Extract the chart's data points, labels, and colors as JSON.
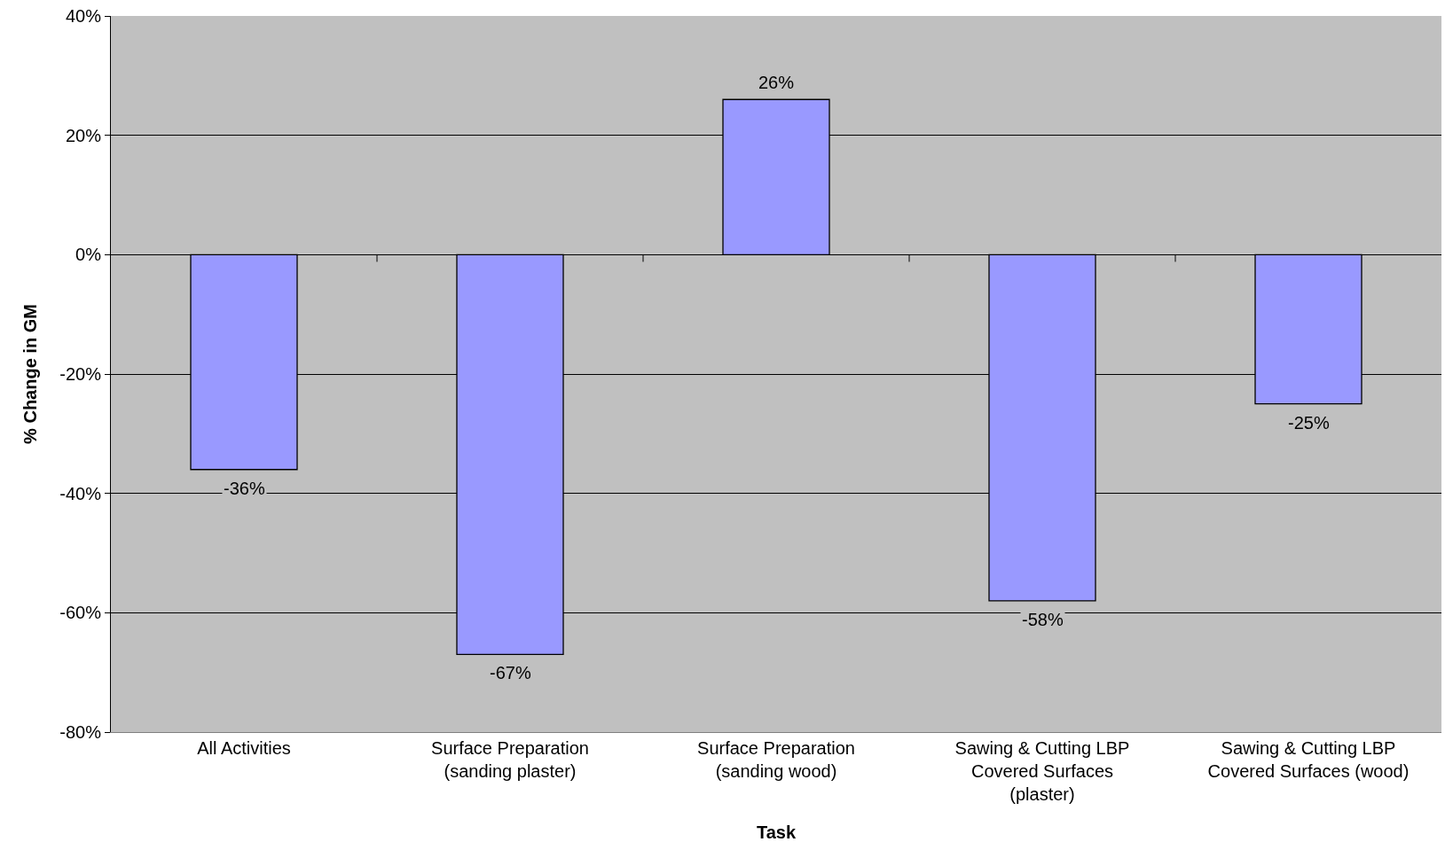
{
  "chart_data": {
    "type": "bar",
    "categories": [
      "All Activities",
      "Surface Preparation (sanding plaster)",
      "Surface Preparation (sanding wood)",
      "Sawing & Cutting LBP Covered Surfaces (plaster)",
      "Sawing & Cutting LBP Covered Surfaces (wood)"
    ],
    "values": [
      -36,
      -67,
      26,
      -58,
      -25
    ],
    "value_labels": [
      "-36%",
      "-67%",
      "26%",
      "-58%",
      "-25%"
    ],
    "color": "#9999ff",
    "xlabel": "Task",
    "ylabel": "% Change in GM",
    "ylim": [
      -80,
      40
    ],
    "yticks": [
      {
        "value": -80,
        "label": "-80%"
      },
      {
        "value": -60,
        "label": "-60%"
      },
      {
        "value": -40,
        "label": "-40%"
      },
      {
        "value": -20,
        "label": "-20%"
      },
      {
        "value": 0,
        "label": "0%"
      },
      {
        "value": 20,
        "label": "20%"
      },
      {
        "value": 40,
        "label": "40%"
      }
    ],
    "grid": "y"
  }
}
